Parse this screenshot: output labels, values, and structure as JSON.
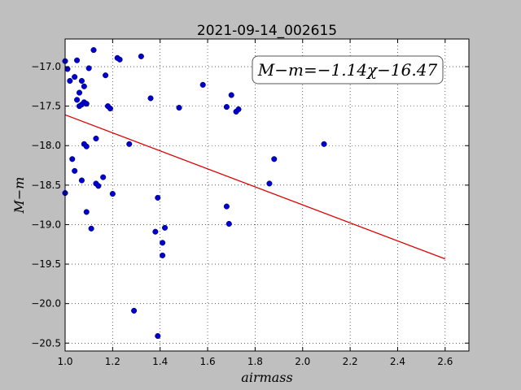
{
  "chart_data": {
    "type": "scatter",
    "title": "2021-09-14_002615",
    "xlabel": "airmass",
    "ylabel": "M−m",
    "xlim": [
      1.0,
      2.7
    ],
    "ylim": [
      -20.6,
      -16.65
    ],
    "x_ticks": [
      "1.0",
      "1.2",
      "1.4",
      "1.6",
      "1.8",
      "2.0",
      "2.2",
      "2.4",
      "2.6"
    ],
    "y_ticks": [
      "−17.0",
      "−17.5",
      "−18.0",
      "−18.5",
      "−19.0",
      "−19.5",
      "−20.0",
      "−20.5"
    ],
    "grid": true,
    "annotation": "M−m=−1.14χ−16.47",
    "colors": {
      "points": "#0000cc",
      "fit_line": "#dd0000",
      "plot_bg": "#ffffff",
      "figure_bg": "#bfbfbf"
    },
    "series": [
      {
        "points": [
          [
            1.0,
            -16.93
          ],
          [
            1.01,
            -17.03
          ],
          [
            1.0,
            -18.6
          ],
          [
            1.02,
            -17.18
          ],
          [
            1.03,
            -18.17
          ],
          [
            1.04,
            -18.32
          ],
          [
            1.04,
            -17.13
          ],
          [
            1.05,
            -16.92
          ],
          [
            1.05,
            -17.42
          ],
          [
            1.06,
            -17.5
          ],
          [
            1.06,
            -17.33
          ],
          [
            1.07,
            -17.48
          ],
          [
            1.07,
            -17.18
          ],
          [
            1.07,
            -18.44
          ],
          [
            1.08,
            -17.45
          ],
          [
            1.08,
            -17.25
          ],
          [
            1.08,
            -17.98
          ],
          [
            1.09,
            -17.47
          ],
          [
            1.09,
            -18.01
          ],
          [
            1.09,
            -18.84
          ],
          [
            1.1,
            -17.02
          ],
          [
            1.11,
            -19.05
          ],
          [
            1.12,
            -16.79
          ],
          [
            1.13,
            -17.91
          ],
          [
            1.13,
            -18.48
          ],
          [
            1.14,
            -18.51
          ],
          [
            1.16,
            -18.4
          ],
          [
            1.17,
            -17.11
          ],
          [
            1.18,
            -17.5
          ],
          [
            1.19,
            -17.53
          ],
          [
            1.2,
            -18.61
          ],
          [
            1.22,
            -16.89
          ],
          [
            1.23,
            -16.91
          ],
          [
            1.27,
            -17.98
          ],
          [
            1.29,
            -20.09
          ],
          [
            1.32,
            -16.87
          ],
          [
            1.36,
            -17.4
          ],
          [
            1.38,
            -19.09
          ],
          [
            1.39,
            -20.41
          ],
          [
            1.39,
            -18.66
          ],
          [
            1.41,
            -19.23
          ],
          [
            1.41,
            -19.39
          ],
          [
            1.42,
            -19.04
          ],
          [
            1.48,
            -17.52
          ],
          [
            1.58,
            -17.23
          ],
          [
            1.68,
            -18.77
          ],
          [
            1.68,
            -17.51
          ],
          [
            1.69,
            -18.99
          ],
          [
            1.7,
            -17.36
          ],
          [
            1.72,
            -17.57
          ],
          [
            1.73,
            -17.54
          ],
          [
            1.86,
            -18.48
          ],
          [
            1.88,
            -18.17
          ],
          [
            2.09,
            -17.98
          ]
        ]
      }
    ],
    "fit": {
      "slope": -1.14,
      "intercept": -16.47,
      "x_range": [
        1.0,
        2.6
      ]
    }
  }
}
